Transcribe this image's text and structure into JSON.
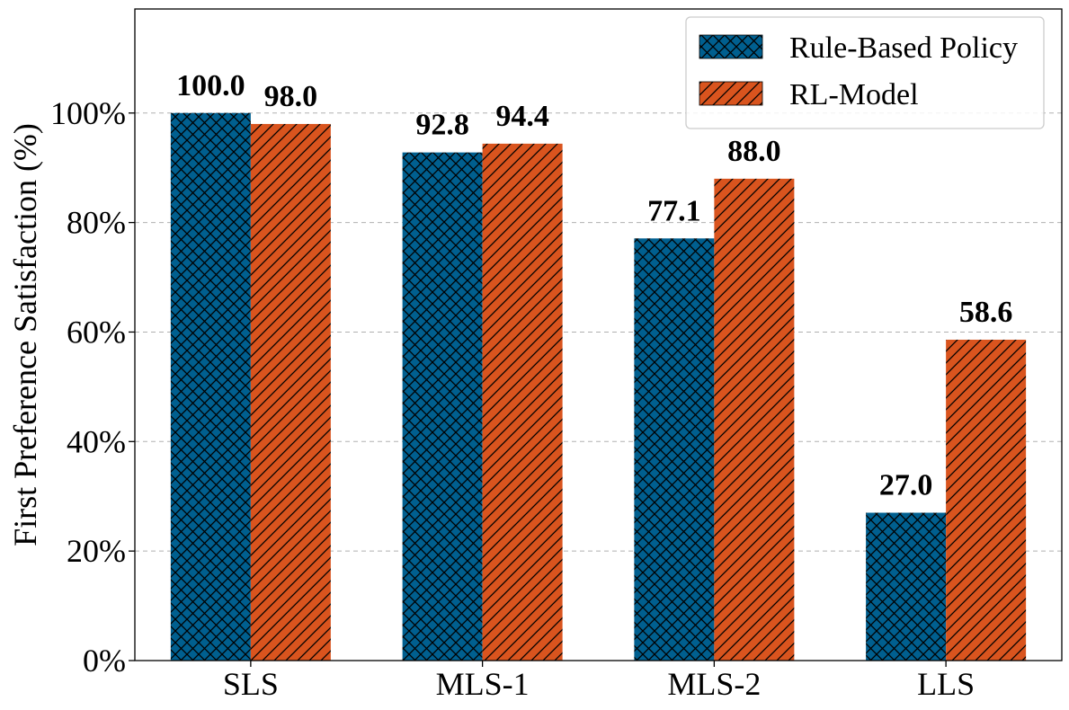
{
  "chart_data": {
    "type": "bar",
    "categories": [
      "SLS",
      "MLS-1",
      "MLS-2",
      "LLS"
    ],
    "series": [
      {
        "name": "Rule-Based Policy",
        "values": [
          100.0,
          92.8,
          77.1,
          27.0
        ],
        "color": "#005f8f",
        "hatch": "crosshatch"
      },
      {
        "name": "RL-Model",
        "values": [
          98.0,
          94.4,
          88.0,
          58.6
        ],
        "color": "#d9541e",
        "hatch": "diagonal"
      }
    ],
    "value_labels": [
      [
        "100.0",
        "92.8",
        "77.1",
        "27.0"
      ],
      [
        "98.0",
        "94.4",
        "88.0",
        "58.6"
      ]
    ],
    "title": "",
    "xlabel": "",
    "ylabel": "First Preference Satisfaction (%)",
    "ylim": [
      0,
      119
    ],
    "yticks": [
      0,
      20,
      40,
      60,
      80,
      100
    ],
    "ytick_labels": [
      "0%",
      "20%",
      "40%",
      "60%",
      "80%",
      "100%"
    ],
    "grid": "y-dashed",
    "legend_position": "top-right"
  }
}
